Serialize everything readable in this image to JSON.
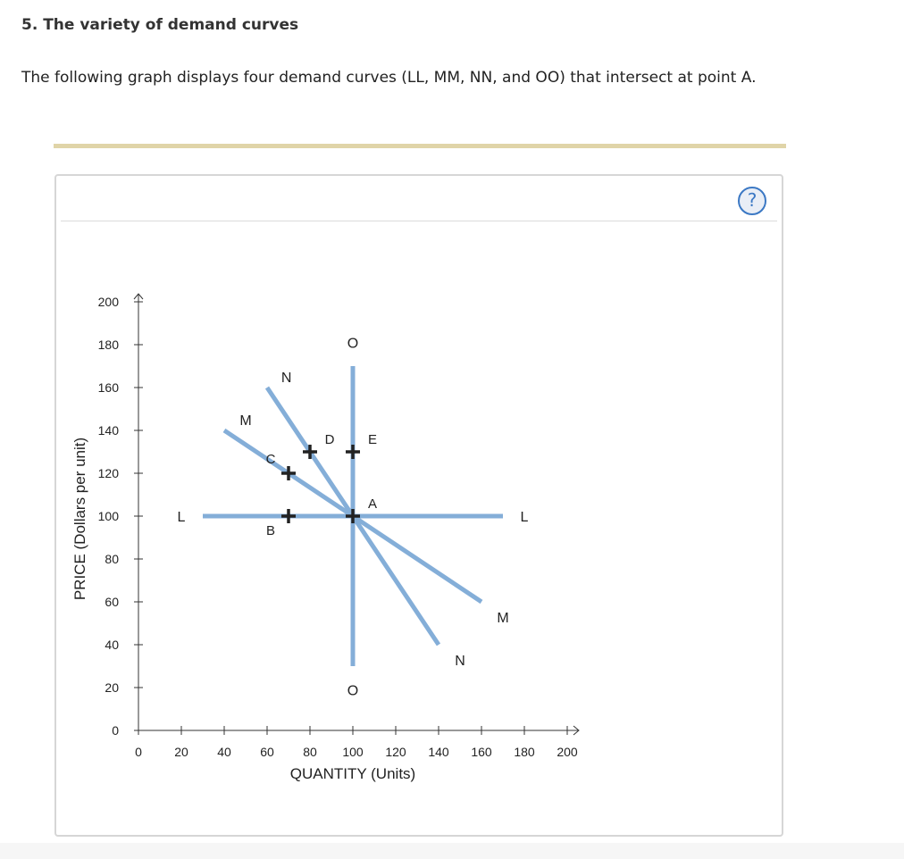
{
  "question": {
    "title": "5. The variety of demand curves",
    "description": "The following graph displays four demand curves (LL, MM, NN, and OO) that intersect at point A."
  },
  "colors": {
    "curve": "#84aed8",
    "axis": "#333333",
    "point_marker": "#222222",
    "rule": "#e0d4a8",
    "help": "#3b78c4"
  },
  "help_button": {
    "label": "?",
    "icon": "question-circle-icon"
  },
  "chart_data": {
    "type": "line",
    "xlabel": "QUANTITY (Units)",
    "ylabel": "PRICE (Dollars per unit)",
    "xlim": [
      0,
      200
    ],
    "ylim": [
      0,
      200
    ],
    "xticks": [
      0,
      20,
      40,
      60,
      80,
      100,
      120,
      140,
      160,
      180,
      200
    ],
    "yticks": [
      0,
      20,
      40,
      60,
      80,
      100,
      120,
      140,
      160,
      180,
      200
    ],
    "series": [
      {
        "name": "L",
        "x": [
          30,
          170
        ],
        "y": [
          100,
          100
        ]
      },
      {
        "name": "M",
        "x": [
          40,
          160
        ],
        "y": [
          140,
          60
        ]
      },
      {
        "name": "N",
        "x": [
          60,
          140
        ],
        "y": [
          160,
          40
        ]
      },
      {
        "name": "O",
        "x": [
          100,
          100
        ],
        "y": [
          170,
          30
        ]
      }
    ],
    "curve_labels": [
      {
        "text": "L",
        "x": 20,
        "y": 100
      },
      {
        "text": "L",
        "x": 180,
        "y": 100
      },
      {
        "text": "M",
        "x": 50,
        "y": 145
      },
      {
        "text": "M",
        "x": 170,
        "y": 53
      },
      {
        "text": "N",
        "x": 69,
        "y": 165
      },
      {
        "text": "N",
        "x": 150,
        "y": 33
      },
      {
        "text": "O",
        "x": 100,
        "y": 181
      },
      {
        "text": "O",
        "x": 100,
        "y": 19
      }
    ],
    "points": [
      {
        "label": "A",
        "x": 100,
        "y": 100
      },
      {
        "label": "B",
        "x": 70,
        "y": 100
      },
      {
        "label": "C",
        "x": 70,
        "y": 120
      },
      {
        "label": "D",
        "x": 80,
        "y": 130
      },
      {
        "label": "E",
        "x": 100,
        "y": 130
      }
    ]
  }
}
